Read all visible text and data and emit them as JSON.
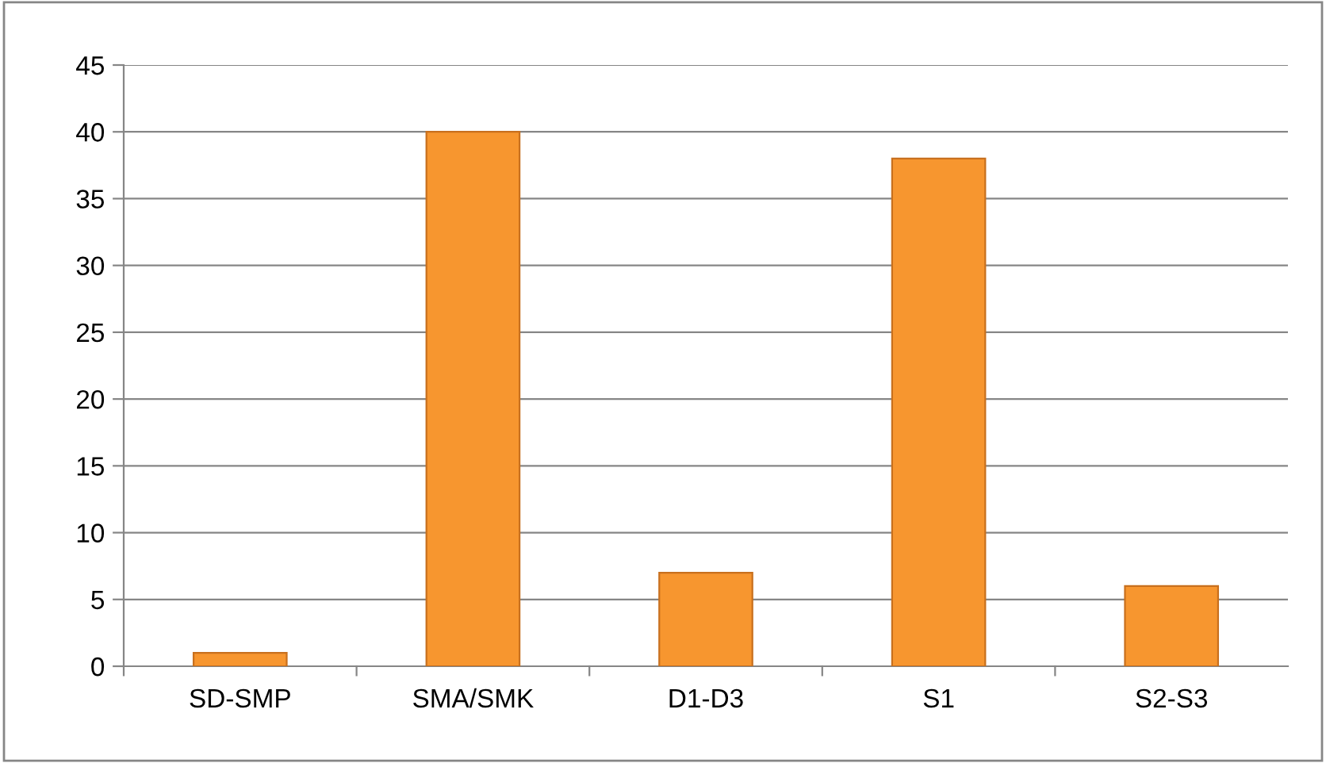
{
  "chart_data": {
    "type": "bar",
    "categories": [
      "SD-SMP",
      "SMA/SMK",
      "D1-D3",
      "S1",
      "S2-S3"
    ],
    "values": [
      1,
      40,
      7,
      38,
      6
    ],
    "color": "#f7962f",
    "ylim": [
      0,
      45
    ],
    "yticks": [
      0,
      5,
      10,
      15,
      20,
      25,
      30,
      35,
      40,
      45
    ],
    "grid": "y",
    "legend": false
  }
}
